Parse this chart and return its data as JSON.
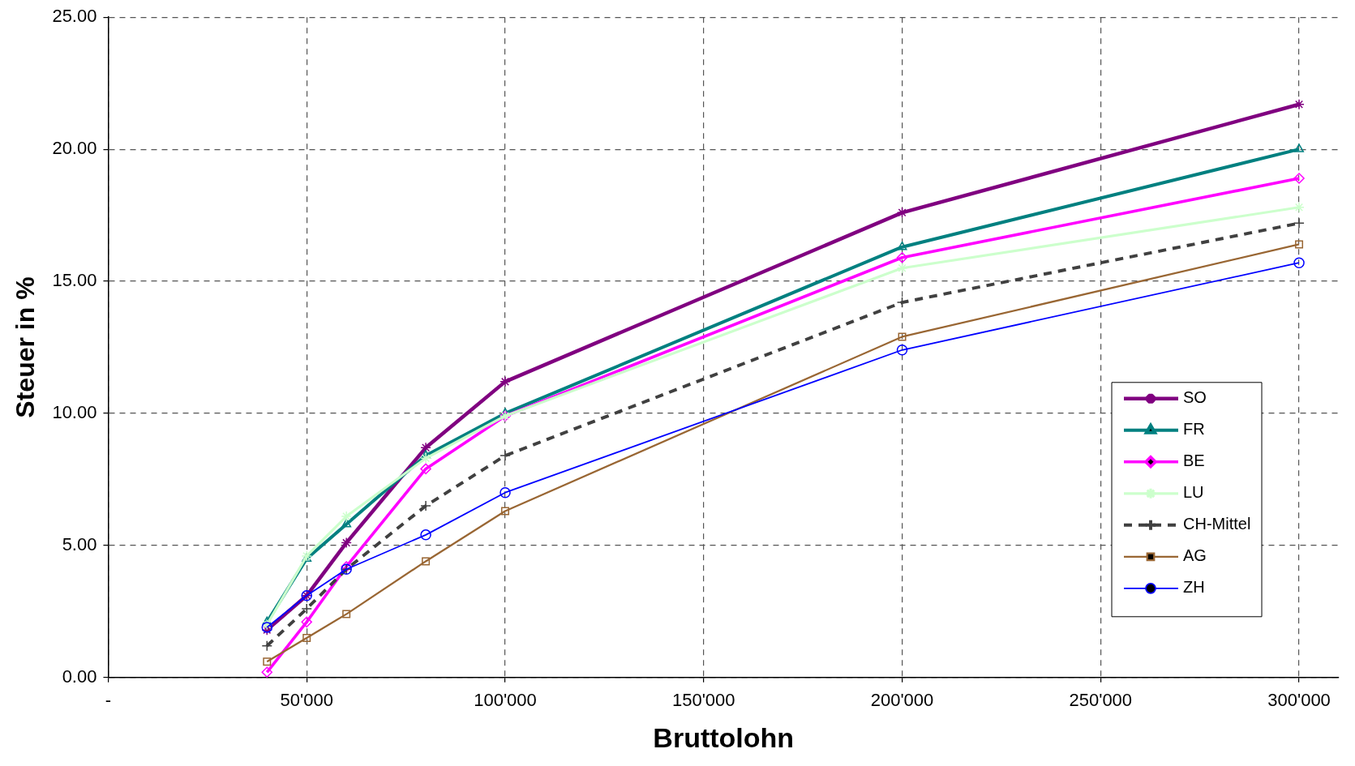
{
  "chart_data": {
    "type": "line",
    "xlabel": "Bruttolohn",
    "ylabel": "Steuer in %",
    "x": [
      40000,
      50000,
      60000,
      80000,
      100000,
      200000,
      300000
    ],
    "xlim": [
      0,
      310000
    ],
    "xticks": [
      {
        "value": 0,
        "label": "-"
      },
      {
        "value": 50000,
        "label": "50'000"
      },
      {
        "value": 100000,
        "label": "100'000"
      },
      {
        "value": 150000,
        "label": "150'000"
      },
      {
        "value": 200000,
        "label": "200'000"
      },
      {
        "value": 250000,
        "label": "250'000"
      },
      {
        "value": 300000,
        "label": "300'000"
      }
    ],
    "ylim": [
      0,
      25
    ],
    "yticks": [
      {
        "value": 0,
        "label": "0.00"
      },
      {
        "value": 5,
        "label": "5.00"
      },
      {
        "value": 10,
        "label": "10.00"
      },
      {
        "value": 15,
        "label": "15.00"
      },
      {
        "value": 20,
        "label": "20.00"
      },
      {
        "value": 25,
        "label": "25.00"
      }
    ],
    "grid": true,
    "legend": "bottom right",
    "series": [
      {
        "name": "SO",
        "color": "#800080",
        "marker": "cross",
        "values": [
          1.8,
          3.1,
          5.1,
          8.7,
          11.2,
          17.6,
          21.7
        ]
      },
      {
        "name": "FR",
        "color": "#008080",
        "marker": "triangle",
        "values": [
          2.1,
          4.5,
          5.8,
          8.4,
          10.0,
          16.3,
          20.0
        ]
      },
      {
        "name": "BE",
        "color": "#ff00ff",
        "marker": "diamond",
        "values": [
          0.2,
          2.1,
          4.2,
          7.9,
          9.9,
          15.9,
          18.9
        ]
      },
      {
        "name": "LU",
        "color": "#ccffcc",
        "marker": "cross",
        "values": [
          2.0,
          4.6,
          6.1,
          8.3,
          9.9,
          15.5,
          17.8
        ]
      },
      {
        "name": "CH-Mittel",
        "color": "#404040",
        "marker": "plus",
        "line_style": "dashed",
        "values": [
          1.2,
          2.6,
          4.1,
          6.5,
          8.4,
          14.2,
          17.2
        ]
      },
      {
        "name": "AG",
        "color": "#996633",
        "marker": "square",
        "values": [
          0.6,
          1.5,
          2.4,
          4.4,
          6.3,
          12.9,
          16.4
        ]
      },
      {
        "name": "ZH",
        "color": "#0000ff",
        "marker": "circle",
        "values": [
          1.9,
          3.1,
          4.1,
          5.4,
          7.0,
          12.4,
          15.7
        ]
      }
    ]
  }
}
